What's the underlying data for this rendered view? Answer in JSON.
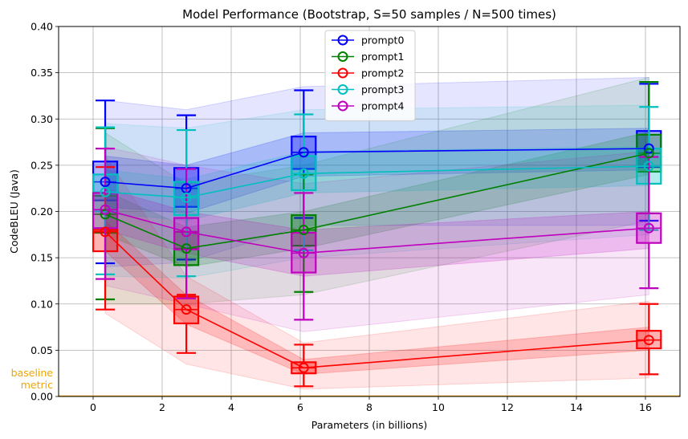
{
  "chart_data": {
    "type": "line",
    "title": "Model Performance (Bootstrap, S=50 samples / N=500 times)",
    "xlabel": "Parameters (in billions)",
    "ylabel": "CodeBLEU (Java)",
    "xlim": [
      -1,
      17
    ],
    "ylim": [
      0,
      0.4
    ],
    "xticks": [
      0,
      2,
      4,
      6,
      8,
      10,
      12,
      14,
      16
    ],
    "yticks": [
      0.0,
      0.05,
      0.1,
      0.15,
      0.2,
      0.25,
      0.3,
      0.35,
      0.4
    ],
    "grid": true,
    "legend_position": "top-center",
    "x": [
      0.35,
      2.7,
      6.1,
      16.1
    ],
    "baseline": {
      "label": "baseline\nmetric",
      "value": 0.0,
      "color": "#f0a500"
    },
    "series": [
      {
        "name": "prompt0",
        "color": "#0000ff",
        "values": [
          0.232,
          0.225,
          0.264,
          0.268
        ],
        "q1": [
          0.212,
          0.205,
          0.246,
          0.248
        ],
        "q3": [
          0.254,
          0.247,
          0.281,
          0.287
        ],
        "whisker_low": [
          0.144,
          0.148,
          0.193,
          0.19
        ],
        "whisker_high": [
          0.32,
          0.304,
          0.331,
          0.338
        ],
        "band_inner_low": [
          0.205,
          0.198,
          0.238,
          0.245
        ],
        "band_inner_high": [
          0.26,
          0.25,
          0.285,
          0.29
        ],
        "band_outer_low": [
          0.14,
          0.145,
          0.185,
          0.185
        ],
        "band_outer_high": [
          0.32,
          0.31,
          0.335,
          0.345
        ]
      },
      {
        "name": "prompt1",
        "color": "#008000",
        "values": [
          0.197,
          0.16,
          0.18,
          0.263
        ],
        "q1": [
          0.177,
          0.142,
          0.163,
          0.243
        ],
        "q3": [
          0.217,
          0.178,
          0.196,
          0.283
        ],
        "whisker_low": [
          0.105,
          0.108,
          0.113,
          0.198
        ],
        "whisker_high": [
          0.29,
          0.232,
          0.24,
          0.34
        ],
        "band_inner_low": [
          0.175,
          0.14,
          0.16,
          0.24
        ],
        "band_inner_high": [
          0.222,
          0.183,
          0.2,
          0.286
        ],
        "band_outer_low": [
          0.1,
          0.1,
          0.11,
          0.19
        ],
        "band_outer_high": [
          0.285,
          0.23,
          0.25,
          0.345
        ]
      },
      {
        "name": "prompt2",
        "color": "#ff0000",
        "values": [
          0.178,
          0.094,
          0.031,
          0.061
        ],
        "q1": [
          0.157,
          0.079,
          0.025,
          0.052
        ],
        "q3": [
          0.18,
          0.108,
          0.037,
          0.071
        ],
        "whisker_low": [
          0.094,
          0.047,
          0.011,
          0.024
        ],
        "whisker_high": [
          0.248,
          0.11,
          0.056,
          0.1
        ],
        "band_inner_low": [
          0.157,
          0.078,
          0.024,
          0.05
        ],
        "band_inner_high": [
          0.19,
          0.11,
          0.04,
          0.075
        ],
        "band_outer_low": [
          0.09,
          0.035,
          0.008,
          0.02
        ],
        "band_outer_high": [
          0.26,
          0.13,
          0.058,
          0.103
        ]
      },
      {
        "name": "prompt3",
        "color": "#00bfbf",
        "values": [
          0.221,
          0.215,
          0.241,
          0.249
        ],
        "q1": [
          0.2,
          0.196,
          0.223,
          0.23
        ],
        "q3": [
          0.24,
          0.232,
          0.26,
          0.268
        ],
        "whisker_low": [
          0.132,
          0.13,
          0.158,
          0.18
        ],
        "whisker_high": [
          0.291,
          0.288,
          0.305,
          0.313
        ],
        "band_inner_low": [
          0.198,
          0.19,
          0.22,
          0.228
        ],
        "band_inner_high": [
          0.245,
          0.235,
          0.265,
          0.27
        ],
        "band_outer_low": [
          0.13,
          0.128,
          0.15,
          0.175
        ],
        "band_outer_high": [
          0.295,
          0.29,
          0.31,
          0.315
        ]
      },
      {
        "name": "prompt4",
        "color": "#bf00bf",
        "values": [
          0.202,
          0.178,
          0.155,
          0.182
        ],
        "q1": [
          0.182,
          0.159,
          0.134,
          0.166
        ],
        "q3": [
          0.22,
          0.193,
          0.177,
          0.198
        ],
        "whisker_low": [
          0.127,
          0.106,
          0.083,
          0.117
        ],
        "whisker_high": [
          0.268,
          0.246,
          0.22,
          0.259
        ],
        "band_inner_low": [
          0.18,
          0.155,
          0.13,
          0.16
        ],
        "band_inner_high": [
          0.225,
          0.2,
          0.18,
          0.2
        ],
        "band_outer_low": [
          0.12,
          0.1,
          0.07,
          0.11
        ],
        "band_outer_high": [
          0.27,
          0.25,
          0.23,
          0.265
        ]
      }
    ]
  }
}
